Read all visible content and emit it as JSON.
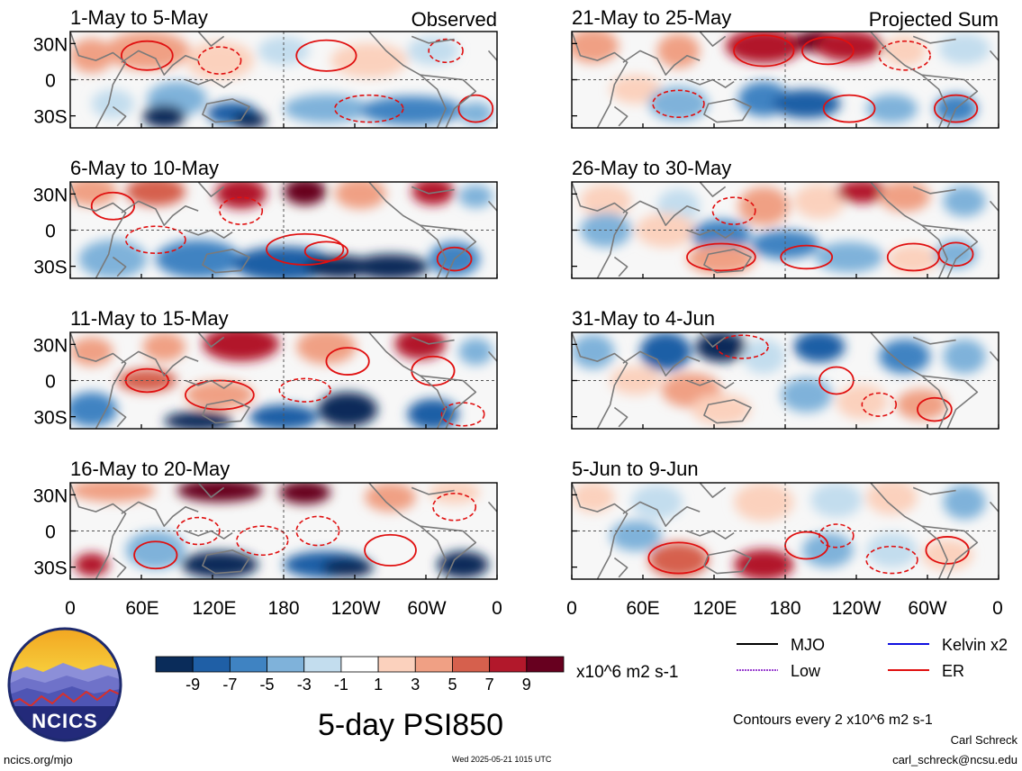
{
  "columns": {
    "left": "Observed",
    "right": "Projected Sum"
  },
  "panels": [
    {
      "id": "p1",
      "title": "1-May to 5-May",
      "col": "left"
    },
    {
      "id": "p2",
      "title": "6-May to 10-May",
      "col": "left"
    },
    {
      "id": "p3",
      "title": "11-May to 15-May",
      "col": "left"
    },
    {
      "id": "p4",
      "title": "16-May to 20-May",
      "col": "left"
    },
    {
      "id": "p5",
      "title": "21-May to 25-May",
      "col": "right"
    },
    {
      "id": "p6",
      "title": "26-May to 30-May",
      "col": "right"
    },
    {
      "id": "p7",
      "title": "31-May to 4-Jun",
      "col": "right"
    },
    {
      "id": "p8",
      "title": "5-Jun to 9-Jun",
      "col": "right"
    }
  ],
  "chart_data": {
    "type": "heatmap",
    "title": "5-day PSI850",
    "y_ticks": [
      "30N",
      "0",
      "30S"
    ],
    "x_ticks": [
      "0",
      "60E",
      "120E",
      "180",
      "120W",
      "60W",
      "0"
    ],
    "colorbar": {
      "unit": "x10^6 m2 s-1",
      "tick_labels": [
        "-9",
        "-7",
        "-5",
        "-3",
        "-1",
        "1",
        "3",
        "5",
        "7",
        "9"
      ],
      "colors": [
        "#0a2c5a",
        "#1f5fa6",
        "#3f83c2",
        "#7fb2da",
        "#c3ddee",
        "#ffffff",
        "#fbd1bd",
        "#f0a084",
        "#d6604d",
        "#b2182b",
        "#67001f"
      ]
    },
    "contour_note": "Contours every 2 x10^6 m2 s-1",
    "legend": [
      {
        "name": "MJO",
        "color": "#000000"
      },
      {
        "name": "Kelvin x2",
        "color": "#1010e0"
      },
      {
        "name": "Low",
        "color": "#9a40d0"
      },
      {
        "name": "ER",
        "color": "#e01010"
      }
    ]
  },
  "branding": {
    "logo_text": "NCICS",
    "site": "ncics.org/mjo",
    "timestamp": "Wed 2025-05-21 1015 UTC",
    "author": "Carl Schreck",
    "email": "carl_schreck@ncsu.edu"
  }
}
